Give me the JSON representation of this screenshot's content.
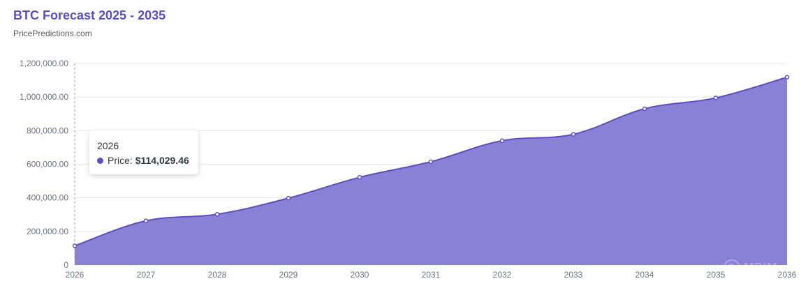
{
  "header": {
    "title": "BTC Forecast 2025 - 2035",
    "subtitle": "PricePredictions.com"
  },
  "tooltip": {
    "year": "2026",
    "label": "Price:",
    "value": "$114,029.46"
  },
  "colors": {
    "title": "#5b4fc4",
    "line": "#5b4fc4",
    "area_fill": "#8981d6",
    "grid": "#e6e8ee",
    "tick_label": "#6b7385"
  },
  "chart_data": {
    "type": "area",
    "title": "BTC Forecast 2025 - 2035",
    "xlabel": "",
    "ylabel": "",
    "x": [
      "2026",
      "2027",
      "2028",
      "2029",
      "2030",
      "2031",
      "2032",
      "2033",
      "2034",
      "2035",
      "2036"
    ],
    "series": [
      {
        "name": "Price",
        "values": [
          114029.46,
          263000,
          302000,
          398000,
          522000,
          615000,
          740000,
          778000,
          930000,
          995000,
          1118000
        ]
      }
    ],
    "ylim": [
      0,
      1200000
    ],
    "yticks": [
      0,
      200000,
      400000,
      600000,
      800000,
      1000000,
      1200000
    ],
    "ytick_labels": [
      "0",
      "200,000.00",
      "400,000.00",
      "600,000.00",
      "800,000.00",
      "1,000,000.00",
      "1,200,000.00"
    ],
    "grid": true,
    "legend": "none"
  },
  "watermark": {
    "text": "MPIM"
  }
}
